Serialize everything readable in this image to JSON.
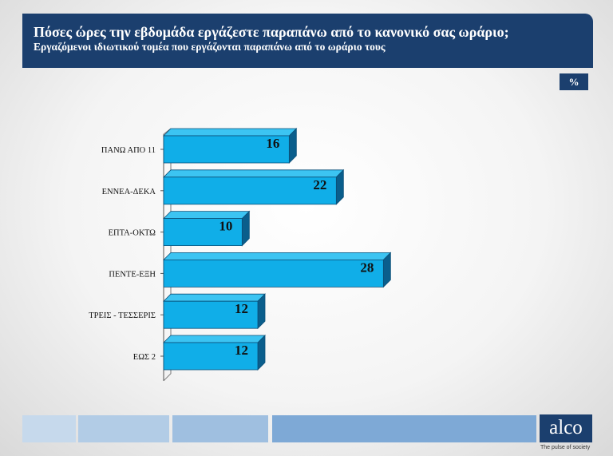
{
  "header": {
    "title": "Πόσες ώρες την εβδομάδα εργάζεστε παραπάνω από το κανονικό σας ωράριο;",
    "subtitle": "Εργαζόμενοι ιδιωτικού τομέα που εργάζονται παραπάνω από το ωράριο τους"
  },
  "unit_badge": "%",
  "chart_data": {
    "type": "bar",
    "orientation": "horizontal",
    "categories": [
      "ΠΑΝΩ ΑΠΟ 11",
      "ΕΝΝΕΑ-ΔΕΚΑ",
      "ΕΠΤΑ-ΟΚΤΩ",
      "ΠΕΝΤΕ-ΕΞΗ",
      "ΤΡΕΙΣ - ΤΕΣΣΕΡΙΣ",
      "ΕΩΣ 2"
    ],
    "values": [
      16,
      22,
      10,
      28,
      12,
      12
    ],
    "xlim": [
      0,
      30
    ],
    "grid": false,
    "legend": "none"
  },
  "colors": {
    "header": "#1b3f6e",
    "bar_front": "#10aee8",
    "bar_top": "#3cc4f2",
    "bar_side": "#0a5e8c",
    "footer_blocks": [
      "#c6d9ec",
      "#b2cce6",
      "#9fbfe0",
      "#7ea9d6"
    ]
  },
  "footer": {
    "logo": "alco",
    "tagline": "The pulse of society"
  }
}
